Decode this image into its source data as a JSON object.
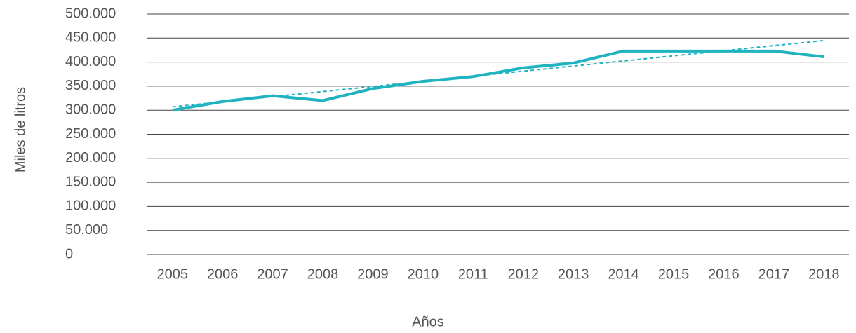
{
  "chart_data": {
    "type": "line",
    "xlabel": "Años",
    "ylabel": "Miles de litros",
    "categories": [
      "2005",
      "2006",
      "2007",
      "2008",
      "2009",
      "2010",
      "2011",
      "2012",
      "2013",
      "2014",
      "2015",
      "2016",
      "2017",
      "2018"
    ],
    "series": [
      {
        "color": "#1fb3c0",
        "style": "solid",
        "values": [
          300000,
          318000,
          330000,
          320000,
          345000,
          360000,
          370000,
          388000,
          398000,
          423000,
          423000,
          423000,
          423000,
          411000
        ]
      },
      {
        "color": "#1fb3c0",
        "style": "dashed",
        "values": [
          307000,
          317600,
          328200,
          338800,
          349400,
          360000,
          370600,
          381200,
          391800,
          402400,
          413000,
          423600,
          434200,
          444800
        ]
      }
    ],
    "ylim": [
      0,
      500000
    ],
    "yticks": [
      0,
      {
        "value": 50000,
        "label": "50.000"
      },
      {
        "value": 100000,
        "label": "100.000"
      },
      {
        "value": 150000,
        "label": "150.000"
      },
      {
        "value": 200000,
        "label": "200.000"
      },
      {
        "value": 250000,
        "label": "250.000"
      },
      {
        "value": 300000,
        "label": "300.000"
      },
      {
        "value": 350000,
        "label": "350.000"
      },
      {
        "value": 400000,
        "label": "400.000"
      },
      {
        "value": 450000,
        "label": "450.000"
      },
      {
        "value": 500000,
        "label": "500.000"
      }
    ],
    "grid": true
  }
}
